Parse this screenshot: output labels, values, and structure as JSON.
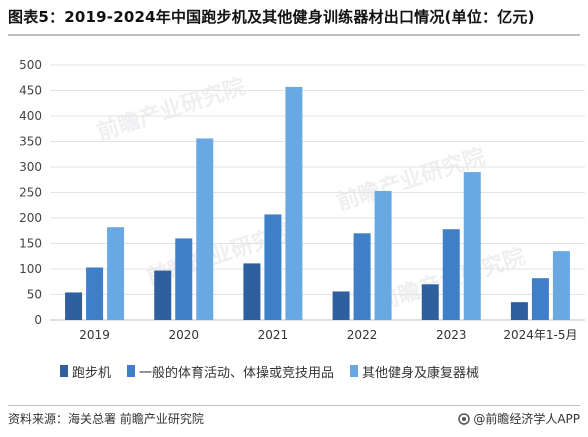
{
  "title": "图表5：2019-2024年中国跑步机及其他健身训练器材出口情况(单位：亿元)",
  "source": "资料来源：海关总署 前瞻产业研究院",
  "brand": "@前瞻经济学人APP",
  "watermark": "前瞻产业研究院",
  "colors": {
    "series1": "#2f5f9e",
    "series2": "#3f7fc8",
    "series3": "#6aa8e3"
  },
  "chart_data": {
    "type": "bar",
    "categories": [
      "2019",
      "2020",
      "2021",
      "2022",
      "2023",
      "2024年1-5月"
    ],
    "series": [
      {
        "name": "跑步机",
        "values": [
          54,
          97,
          111,
          56,
          70,
          35
        ]
      },
      {
        "name": "一般的体育活动、体操或竞技用品",
        "values": [
          103,
          160,
          207,
          170,
          178,
          82
        ]
      },
      {
        "name": "其他健身及康复器械",
        "values": [
          182,
          356,
          457,
          253,
          290,
          135
        ]
      }
    ],
    "ylim": [
      0,
      500
    ],
    "yticks": [
      "0",
      "50",
      "100",
      "150",
      "200",
      "250",
      "300",
      "350",
      "400",
      "450",
      "500"
    ],
    "grid": true,
    "legend_position": "bottom"
  }
}
